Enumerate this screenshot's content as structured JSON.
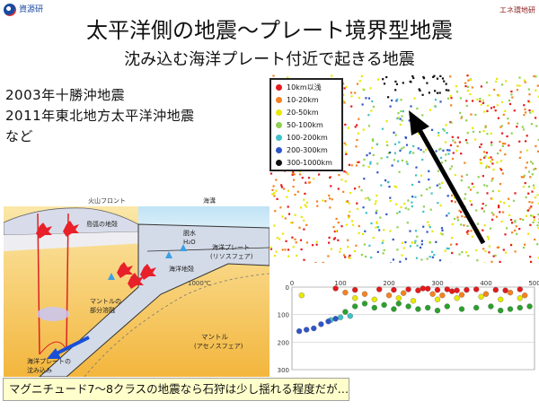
{
  "header": {
    "logo_text": "資源研",
    "right_text": "エネ環地研"
  },
  "title": "太平洋側の地震～プレート境界型地震",
  "subtitle": "沈み込む海洋プレート付近で起きる地震",
  "events": [
    "2003年十勝沖地震",
    "2011年東北地方太平洋沖地震",
    "など"
  ],
  "legend": [
    {
      "label": "10km以浅",
      "color": "#e41a1c"
    },
    {
      "label": "10-20km",
      "color": "#f58220"
    },
    {
      "label": "20-50km",
      "color": "#e8e800"
    },
    {
      "label": "50-100km",
      "color": "#8fd14f"
    },
    {
      "label": "100-200km",
      "color": "#3fc1c9"
    },
    {
      "label": "200-300km",
      "color": "#2f55c9"
    },
    {
      "label": "300-1000km",
      "color": "#111111"
    }
  ],
  "section": {
    "volcanic_front": "火山フロント",
    "sea_trench": "海溝",
    "island_crust": "島弧の地殻",
    "dehydration_upper": "脱水",
    "dehydration_lower": "H₂O",
    "oceanic_plate": "海洋プレート",
    "lithosphere": "(リソスフェア)",
    "oceanic_crust": "海洋地殻",
    "isotherm": "1000℃",
    "mantle_melt_1": "マントルの",
    "mantle_melt_2": "部分溶融",
    "mantle": "マントル",
    "asthenosphere": "(アセノスフェア)",
    "subduction_1": "海洋プレートの",
    "subduction_2": "沈み込み"
  },
  "chart_data": {
    "type": "scatter",
    "x_ticks": [
      0,
      100,
      200,
      300,
      400,
      500
    ],
    "y_ticks": [
      0,
      100,
      200,
      300
    ],
    "xlim": [
      0,
      500
    ],
    "ylim": [
      300,
      0
    ],
    "series": [
      {
        "color": "#e41a1c",
        "points": [
          [
            90,
            5
          ],
          [
            130,
            10
          ],
          [
            180,
            8
          ],
          [
            210,
            10
          ],
          [
            240,
            8
          ],
          [
            260,
            12
          ],
          [
            280,
            6
          ],
          [
            300,
            10
          ],
          [
            320,
            8
          ],
          [
            340,
            12
          ],
          [
            360,
            10
          ],
          [
            380,
            8
          ],
          [
            420,
            10
          ],
          [
            440,
            12
          ],
          [
            470,
            8
          ],
          [
            330,
            15
          ],
          [
            270,
            5
          ]
        ]
      },
      {
        "color": "#f58220",
        "points": [
          [
            110,
            20
          ],
          [
            150,
            25
          ],
          [
            200,
            30
          ],
          [
            230,
            22
          ],
          [
            290,
            25
          ],
          [
            310,
            30
          ],
          [
            350,
            28
          ],
          [
            400,
            25
          ],
          [
            450,
            20
          ],
          [
            480,
            30
          ]
        ]
      },
      {
        "color": "#e8e800",
        "points": [
          [
            20,
            30
          ],
          [
            130,
            40
          ],
          [
            170,
            45
          ],
          [
            220,
            40
          ],
          [
            250,
            50
          ],
          [
            300,
            45
          ],
          [
            340,
            40
          ],
          [
            390,
            35
          ],
          [
            430,
            45
          ],
          [
            470,
            40
          ]
        ]
      },
      {
        "color": "#2ca02c",
        "points": [
          [
            110,
            90
          ],
          [
            130,
            70
          ],
          [
            150,
            60
          ],
          [
            170,
            75
          ],
          [
            190,
            65
          ],
          [
            210,
            80
          ],
          [
            220,
            60
          ],
          [
            240,
            70
          ],
          [
            260,
            80
          ],
          [
            280,
            75
          ],
          [
            300,
            85
          ],
          [
            320,
            70
          ],
          [
            350,
            80
          ],
          [
            380,
            75
          ],
          [
            410,
            70
          ],
          [
            430,
            85
          ],
          [
            450,
            80
          ],
          [
            470,
            75
          ],
          [
            490,
            70
          ]
        ]
      },
      {
        "color": "#3fc1c9",
        "points": [
          [
            80,
            120
          ],
          [
            100,
            110
          ],
          [
            120,
            105
          ]
        ]
      },
      {
        "color": "#2f55c9",
        "points": [
          [
            15,
            160
          ],
          [
            30,
            155
          ],
          [
            45,
            150
          ],
          [
            60,
            135
          ],
          [
            75,
            125
          ],
          [
            90,
            115
          ]
        ]
      }
    ]
  },
  "caption": "マグニチュード7～8クラスの地震なら石狩は少し揺れる程度だが…"
}
